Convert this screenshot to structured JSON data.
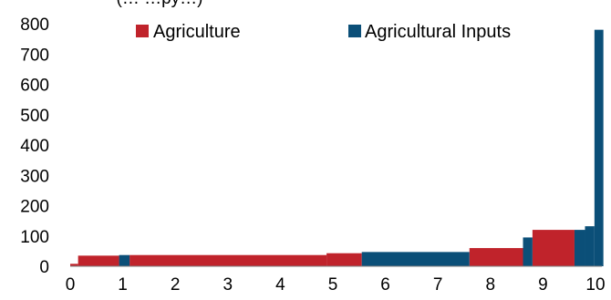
{
  "chart_data": {
    "type": "bar",
    "subtitle": "(… …py…)",
    "xlim": [
      0,
      10
    ],
    "ylim": [
      0,
      800
    ],
    "x_ticks": [
      "0",
      "1",
      "2",
      "3",
      "4",
      "5",
      "6",
      "7",
      "8",
      "9",
      "10"
    ],
    "y_ticks": [
      "0",
      "100",
      "200",
      "300",
      "400",
      "500",
      "600",
      "700",
      "800"
    ],
    "grid": false,
    "legend": {
      "placement": "top",
      "entries": [
        {
          "label": "Agriculture",
          "color": "#c0232b"
        },
        {
          "label": "Agricultural Inputs",
          "color": "#0b4f78"
        }
      ]
    },
    "series": [
      {
        "name": "Agriculture",
        "color": "#c0232b",
        "segments": [
          {
            "x_start": 0.0,
            "x_end": 0.15,
            "value": 8
          },
          {
            "x_start": 0.15,
            "x_end": 0.93,
            "value": 35
          },
          {
            "x_start": 1.13,
            "x_end": 4.88,
            "value": 37
          },
          {
            "x_start": 4.88,
            "x_end": 5.55,
            "value": 43
          },
          {
            "x_start": 7.6,
            "x_end": 8.62,
            "value": 60
          },
          {
            "x_start": 8.8,
            "x_end": 9.6,
            "value": 120
          }
        ]
      },
      {
        "name": "Agricultural Inputs",
        "color": "#0b4f78",
        "segments": [
          {
            "x_start": 0.93,
            "x_end": 1.13,
            "value": 37
          },
          {
            "x_start": 5.55,
            "x_end": 7.6,
            "value": 47
          },
          {
            "x_start": 8.62,
            "x_end": 8.8,
            "value": 95
          },
          {
            "x_start": 9.6,
            "x_end": 9.8,
            "value": 120
          },
          {
            "x_start": 9.8,
            "x_end": 9.98,
            "value": 132
          },
          {
            "x_start": 9.98,
            "x_end": 10.15,
            "value": 780
          }
        ]
      }
    ]
  }
}
